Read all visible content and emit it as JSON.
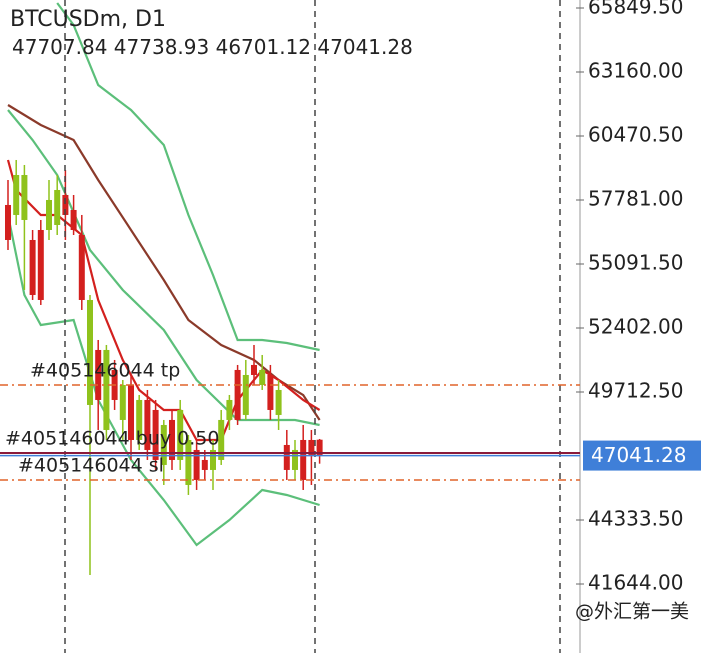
{
  "chart_data": {
    "type": "candlestick",
    "title": "BTCUSDm, D1",
    "ylim": [
      38745,
      66186
    ],
    "yticks": [
      {
        "value": 65849.5,
        "label": "65849.50"
      },
      {
        "value": 63160,
        "label": "63160.00"
      },
      {
        "value": 60470.5,
        "label": "60470.50"
      },
      {
        "value": 57781,
        "label": "57781.00"
      },
      {
        "value": 55091.5,
        "label": "55091.50"
      },
      {
        "value": 52402,
        "label": "52402.00"
      },
      {
        "value": 49712.5,
        "label": "49712.50"
      },
      {
        "value": 44333.5,
        "label": "44333.50"
      },
      {
        "value": 41644,
        "label": "41644.00"
      }
    ],
    "up_color": "#8fc21c",
    "down_color": "#d3201e",
    "candles": {
      "open": [
        57572,
        57152,
        56942,
        56101,
        56521,
        56521,
        56731,
        57992,
        57362,
        56311,
        49168,
        51479,
        48117,
        50639,
        48538,
        50008,
        47697,
        49378,
        48958,
        46647,
        48538,
        46857,
        45806,
        47277,
        46857,
        46437,
        46857,
        48538,
        50639,
        48748,
        50849,
        50008,
        50428,
        48748,
        47487,
        46437,
        47697,
        47697,
        47707.84
      ],
      "high": [
        58622,
        59463,
        59253,
        56521,
        56942,
        58622,
        58832,
        59042,
        57992,
        57152,
        53790,
        51899,
        51689,
        51059,
        50218,
        50428,
        49588,
        49798,
        49378,
        48538,
        48958,
        49378,
        47907,
        47697,
        47277,
        47697,
        48958,
        49588,
        50849,
        51059,
        51689,
        51269,
        50849,
        50218,
        48117,
        47697,
        48327,
        48117,
        47738.93
      ],
      "low": [
        55681,
        56731,
        54000,
        53580,
        53370,
        56101,
        56311,
        56101,
        56311,
        53160,
        42024,
        48117,
        47697,
        48958,
        47697,
        46857,
        47277,
        46857,
        46437,
        45806,
        46437,
        46437,
        45386,
        45596,
        46016,
        45596,
        46647,
        48117,
        48327,
        48538,
        50008,
        49798,
        48538,
        48117,
        46016,
        46016,
        45596,
        45806,
        46701.12
      ],
      "close": [
        56101,
        58832,
        58832,
        53790,
        53580,
        57782,
        58202,
        57152,
        56521,
        53580,
        53580,
        49378,
        51479,
        49378,
        50008,
        47697,
        49378,
        47277,
        46857,
        48327,
        46857,
        48958,
        47697,
        46016,
        46437,
        47277,
        48538,
        49378,
        48538,
        50428,
        50428,
        50639,
        48958,
        49798,
        46437,
        47277,
        46016,
        47067,
        47041.28
      ]
    },
    "lines": [
      {
        "color": "#5cbf7a",
        "x": [
          6,
          8,
          11,
          15,
          19,
          22,
          25,
          28,
          31,
          34,
          38
        ],
        "values": [
          66060,
          65135,
          62614,
          61563,
          60093,
          57152,
          54630,
          51899,
          51899,
          51772,
          51479
        ]
      },
      {
        "color": "#5cbf7a",
        "x": [
          0,
          3,
          6,
          10,
          14,
          19,
          23,
          28,
          32,
          35,
          38
        ],
        "values": [
          61563,
          60303,
          58832,
          55681,
          54000,
          52319,
          50218,
          48538,
          48538,
          48538,
          48327
        ]
      },
      {
        "color": "#5cbf7a",
        "x": [
          0,
          2,
          4,
          8,
          11,
          15,
          19,
          23,
          27,
          31,
          34,
          38
        ],
        "values": [
          57152,
          53790,
          52529,
          52739,
          49378,
          46857,
          45176,
          43285,
          44335,
          45596,
          45386,
          44966
        ]
      },
      {
        "color": "#8b3a2a",
        "x": [
          0,
          4,
          8,
          11,
          15,
          19,
          22,
          26,
          30,
          33,
          36,
          38
        ],
        "values": [
          61773,
          60933,
          60303,
          58622,
          56521,
          54420,
          52739,
          51689,
          51059,
          50218,
          49588,
          48538
        ]
      },
      {
        "color": "#d3201e",
        "x": [
          0,
          1,
          4,
          6,
          9,
          11,
          14,
          16,
          19,
          21,
          23,
          26,
          28,
          31,
          33,
          36,
          38
        ],
        "values": [
          59463,
          58202,
          57152,
          57152,
          56311,
          53580,
          51059,
          49798,
          48958,
          48958,
          47697,
          47697,
          49378,
          50639,
          50218,
          49378,
          48958
        ]
      }
    ],
    "orders": [
      {
        "label": "#405146044 tp",
        "value": 50008,
        "color": "#e0642a"
      },
      {
        "label": "#405146044 buy 0.50",
        "value": 47150,
        "color": "#8b1a3a"
      },
      {
        "label": "#405146044 sl",
        "value": 46016,
        "color": "#e0642a"
      }
    ],
    "price_color": "#3f7fd8",
    "watermark": "@外汇第一美"
  }
}
